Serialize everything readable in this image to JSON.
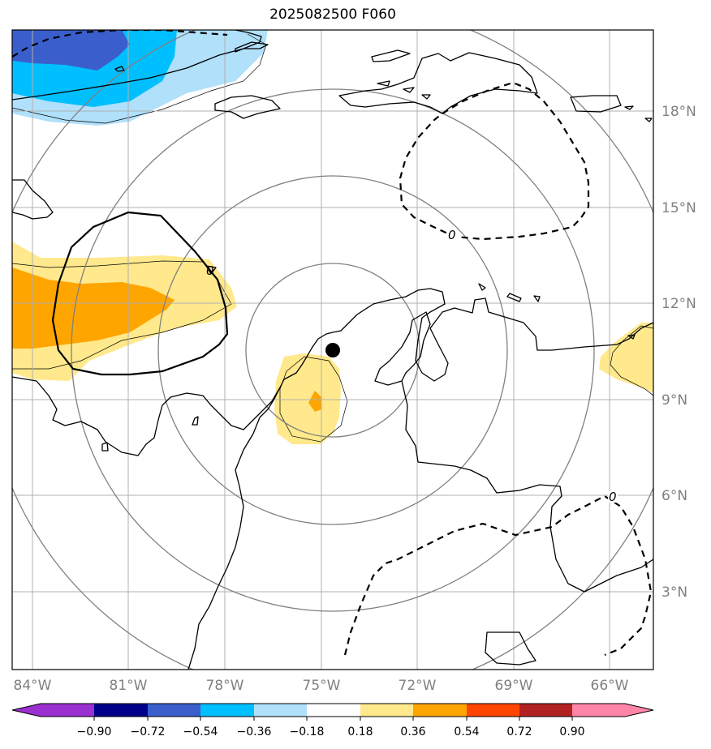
{
  "title": "2025082500 F060",
  "lon_ticks": [
    "84°W",
    "81°W",
    "78°W",
    "75°W",
    "72°W",
    "69°W",
    "66°W"
  ],
  "lat_ticks": [
    "18°N",
    "15°N",
    "12°N",
    "9°N",
    "6°N",
    "3°N"
  ],
  "contour_labels": [
    "0",
    "0",
    "0"
  ],
  "colorbar": {
    "ticks": [
      "−0.90",
      "−0.72",
      "−0.54",
      "−0.36",
      "−0.18",
      "0.18",
      "0.36",
      "0.54",
      "0.72",
      "0.90"
    ],
    "colors": [
      "#9b30d0",
      "#00008b",
      "#3a5fcd",
      "#00bfff",
      "#b0e0fa",
      "#ffffff",
      "#ffe98c",
      "#ffa500",
      "#ff4500",
      "#b22222",
      "#ff85a8"
    ]
  },
  "colors": {
    "grid": "#b0b0b0",
    "range_ring": "#808080",
    "coast": "#000000",
    "pos_light": "#ffe98c",
    "pos_mid": "#ffa500",
    "neg_light": "#b0e0fa",
    "neg_mid": "#00bfff",
    "neg_dark": "#3a5fcd"
  },
  "center_marker": {
    "lon": -74.6,
    "lat": 10.5
  }
}
